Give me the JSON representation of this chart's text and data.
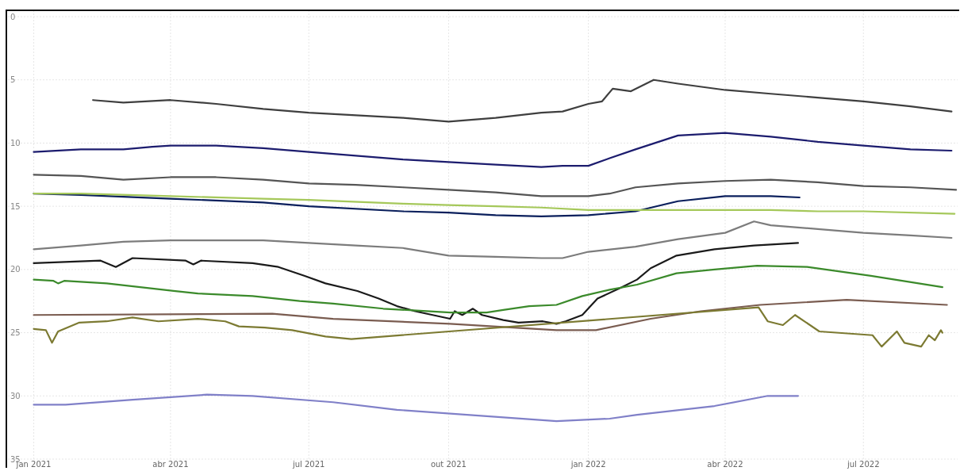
{
  "chart_data": {
    "type": "line",
    "xlim": [
      "2020-12-15",
      "2022-09-01"
    ],
    "ylim": [
      35,
      0
    ],
    "xticks": [
      {
        "value": "2021-01-01",
        "label": "jan 2021"
      },
      {
        "value": "2021-04-01",
        "label": "abr 2021"
      },
      {
        "value": "2021-07-01",
        "label": "jul 2021"
      },
      {
        "value": "2021-10-01",
        "label": "out 2021"
      },
      {
        "value": "2022-01-01",
        "label": "jan 2022"
      },
      {
        "value": "2022-04-01",
        "label": "abr 2022"
      },
      {
        "value": "2022-07-01",
        "label": "jul 2022"
      }
    ],
    "yticks": [
      0,
      5,
      10,
      15,
      20,
      25,
      30,
      35
    ],
    "grid": true,
    "line_style": "solid",
    "marker": "none",
    "series": [
      {
        "color": "#3f3f3f",
        "x": [
          "2021-02-09",
          "2021-03-01",
          "2021-04-01",
          "2021-05-01",
          "2021-06-01",
          "2021-07-01",
          "2021-08-01",
          "2021-09-01",
          "2021-10-01",
          "2021-11-01",
          "2021-12-01",
          "2021-12-15",
          "2022-01-01",
          "2022-01-10",
          "2022-01-17",
          "2022-01-29",
          "2022-02-13",
          "2022-03-01",
          "2022-04-01",
          "2022-05-01",
          "2022-06-01",
          "2022-07-01",
          "2022-08-01",
          "2022-08-28"
        ],
        "values": [
          6.6,
          6.8,
          6.6,
          6.9,
          7.3,
          7.6,
          7.8,
          8.0,
          8.3,
          8.0,
          7.6,
          7.5,
          6.9,
          6.7,
          5.7,
          5.9,
          5.0,
          5.3,
          5.8,
          6.1,
          6.4,
          6.7,
          7.1,
          7.5
        ]
      },
      {
        "color": "#1c1c6e",
        "x": [
          "2021-01-01",
          "2021-02-01",
          "2021-03-01",
          "2021-03-20",
          "2021-04-01",
          "2021-05-01",
          "2021-06-01",
          "2021-07-01",
          "2021-08-01",
          "2021-09-01",
          "2021-10-01",
          "2021-11-01",
          "2021-12-01",
          "2021-12-15",
          "2022-01-01",
          "2022-01-15",
          "2022-02-01",
          "2022-03-01",
          "2022-04-01",
          "2022-05-01",
          "2022-06-01",
          "2022-07-01",
          "2022-08-01",
          "2022-08-28"
        ],
        "values": [
          10.7,
          10.5,
          10.5,
          10.3,
          10.2,
          10.2,
          10.4,
          10.7,
          11.0,
          11.3,
          11.5,
          11.7,
          11.9,
          11.8,
          11.8,
          11.2,
          10.5,
          9.4,
          9.2,
          9.5,
          9.9,
          10.2,
          10.5,
          10.6
        ]
      },
      {
        "color": "#555555",
        "x": [
          "2021-01-01",
          "2021-02-01",
          "2021-03-01",
          "2021-04-01",
          "2021-05-01",
          "2021-06-01",
          "2021-07-01",
          "2021-08-01",
          "2021-09-01",
          "2021-10-01",
          "2021-11-01",
          "2021-12-01",
          "2022-01-01",
          "2022-01-15",
          "2022-02-01",
          "2022-03-01",
          "2022-04-01",
          "2022-05-01",
          "2022-06-01",
          "2022-07-01",
          "2022-08-01",
          "2022-08-31"
        ],
        "values": [
          12.5,
          12.6,
          12.9,
          12.7,
          12.7,
          12.9,
          13.2,
          13.3,
          13.5,
          13.7,
          13.9,
          14.2,
          14.2,
          14.0,
          13.5,
          13.2,
          13.0,
          12.9,
          13.1,
          13.4,
          13.5,
          13.7
        ]
      },
      {
        "color": "#0a1f5c",
        "x": [
          "2021-01-01",
          "2021-02-01",
          "2021-04-01",
          "2021-06-01",
          "2021-07-01",
          "2021-09-01",
          "2021-10-01",
          "2021-11-01",
          "2021-12-01",
          "2022-01-01",
          "2022-02-01",
          "2022-03-01",
          "2022-04-01",
          "2022-05-01",
          "2022-05-20"
        ],
        "values": [
          14.0,
          14.1,
          14.4,
          14.7,
          15.0,
          15.4,
          15.5,
          15.7,
          15.8,
          15.7,
          15.4,
          14.6,
          14.2,
          14.2,
          14.3
        ]
      },
      {
        "color": "#a5c85a",
        "x": [
          "2021-01-01",
          "2021-02-01",
          "2021-04-01",
          "2021-06-01",
          "2021-07-01",
          "2021-09-01",
          "2021-10-01",
          "2021-11-01",
          "2021-12-01",
          "2022-01-01",
          "2022-02-01",
          "2022-03-01",
          "2022-04-01",
          "2022-05-01",
          "2022-06-01",
          "2022-07-01",
          "2022-08-30"
        ],
        "values": [
          14.0,
          14.0,
          14.2,
          14.4,
          14.5,
          14.8,
          14.9,
          15.0,
          15.1,
          15.3,
          15.3,
          15.3,
          15.3,
          15.3,
          15.4,
          15.4,
          15.6
        ]
      },
      {
        "color": "#7c7c7c",
        "x": [
          "2021-01-01",
          "2021-02-01",
          "2021-03-01",
          "2021-04-01",
          "2021-05-01",
          "2021-06-01",
          "2021-07-01",
          "2021-08-01",
          "2021-09-01",
          "2021-10-01",
          "2021-11-01",
          "2021-12-01",
          "2021-12-15",
          "2022-01-01",
          "2022-02-01",
          "2022-03-01",
          "2022-04-01",
          "2022-04-20",
          "2022-05-01",
          "2022-06-01",
          "2022-07-01",
          "2022-08-01",
          "2022-08-28"
        ],
        "values": [
          18.4,
          18.1,
          17.8,
          17.7,
          17.7,
          17.7,
          17.9,
          18.1,
          18.3,
          18.9,
          19.0,
          19.1,
          19.1,
          18.6,
          18.2,
          17.6,
          17.1,
          16.2,
          16.5,
          16.8,
          17.1,
          17.3,
          17.5
        ]
      },
      {
        "color": "#1a1a1a",
        "x": [
          "2021-01-01",
          "2021-02-14",
          "2021-02-24",
          "2021-03-07",
          "2021-04-11",
          "2021-04-16",
          "2021-04-21",
          "2021-05-25",
          "2021-06-11",
          "2021-06-28",
          "2021-07-12",
          "2021-08-02",
          "2021-08-16",
          "2021-08-28",
          "2021-09-09",
          "2021-10-02",
          "2021-10-05",
          "2021-10-10",
          "2021-10-17",
          "2021-10-23",
          "2021-11-06",
          "2021-11-16",
          "2021-12-02",
          "2021-12-11",
          "2021-12-17",
          "2021-12-28",
          "2022-01-07",
          "2022-01-23",
          "2022-02-02",
          "2022-02-11",
          "2022-02-28",
          "2022-03-25",
          "2022-04-20",
          "2022-05-19"
        ],
        "values": [
          19.5,
          19.3,
          19.8,
          19.1,
          19.3,
          19.6,
          19.3,
          19.5,
          19.8,
          20.5,
          21.1,
          21.7,
          22.3,
          22.9,
          23.3,
          23.9,
          23.3,
          23.6,
          23.1,
          23.6,
          24.0,
          24.2,
          24.1,
          24.3,
          24.1,
          23.6,
          22.3,
          21.4,
          20.8,
          19.9,
          18.9,
          18.4,
          18.1,
          17.9
        ]
      },
      {
        "color": "#3b8a2b",
        "x": [
          "2021-01-01",
          "2021-01-14",
          "2021-01-17",
          "2021-01-21",
          "2021-02-18",
          "2021-04-03",
          "2021-04-19",
          "2021-05-25",
          "2021-06-25",
          "2021-07-17",
          "2021-08-19",
          "2021-10-02",
          "2021-10-26",
          "2021-11-06",
          "2021-11-23",
          "2021-12-11",
          "2021-12-28",
          "2022-01-15",
          "2022-02-02",
          "2022-02-28",
          "2022-03-25",
          "2022-04-22",
          "2022-05-25",
          "2022-07-06",
          "2022-08-22"
        ],
        "values": [
          20.8,
          20.9,
          21.1,
          20.9,
          21.1,
          21.7,
          21.9,
          22.1,
          22.5,
          22.7,
          23.1,
          23.4,
          23.4,
          23.2,
          22.9,
          22.8,
          22.1,
          21.6,
          21.2,
          20.3,
          20.0,
          19.7,
          19.8,
          20.5,
          21.4
        ]
      },
      {
        "color": "#7a5c50",
        "x": [
          "2021-01-01",
          "2021-06-07",
          "2021-07-17",
          "2021-10-02",
          "2021-12-11",
          "2022-01-06",
          "2022-02-11",
          "2022-03-16",
          "2022-04-24",
          "2022-06-20",
          "2022-08-25"
        ],
        "values": [
          23.6,
          23.5,
          23.9,
          24.3,
          24.8,
          24.8,
          23.9,
          23.3,
          22.8,
          22.4,
          22.8
        ]
      },
      {
        "color": "#7c7a32",
        "x": [
          "2021-01-01",
          "2021-01-09",
          "2021-01-13",
          "2021-01-17",
          "2021-01-31",
          "2021-02-18",
          "2021-03-07",
          "2021-03-24",
          "2021-04-19",
          "2021-05-07",
          "2021-05-16",
          "2021-06-02",
          "2021-06-20",
          "2021-07-12",
          "2021-07-29",
          "2022-04-23",
          "2022-04-29",
          "2022-05-09",
          "2022-05-17",
          "2022-06-02",
          "2022-07-07",
          "2022-07-13",
          "2022-07-23",
          "2022-07-28",
          "2022-08-08",
          "2022-08-13",
          "2022-08-17",
          "2022-08-21",
          "2022-08-22"
        ],
        "values": [
          24.7,
          24.8,
          25.8,
          24.9,
          24.2,
          24.1,
          23.8,
          24.1,
          23.9,
          24.1,
          24.5,
          24.6,
          24.8,
          25.3,
          25.5,
          23.0,
          24.1,
          24.4,
          23.6,
          24.9,
          25.2,
          26.1,
          24.9,
          25.8,
          26.1,
          25.2,
          25.6,
          24.8,
          25.0
        ]
      },
      {
        "color": "#8080c8",
        "x": [
          "2021-01-01",
          "2021-01-22",
          "2021-03-07",
          "2021-04-25",
          "2021-05-25",
          "2021-07-17",
          "2021-08-28",
          "2021-12-11",
          "2022-01-15",
          "2022-02-02",
          "2022-03-25",
          "2022-04-29",
          "2022-05-19"
        ],
        "values": [
          30.7,
          30.7,
          30.3,
          29.9,
          30.0,
          30.5,
          31.1,
          32.0,
          31.8,
          31.5,
          30.8,
          30.0,
          30.0
        ]
      }
    ]
  }
}
